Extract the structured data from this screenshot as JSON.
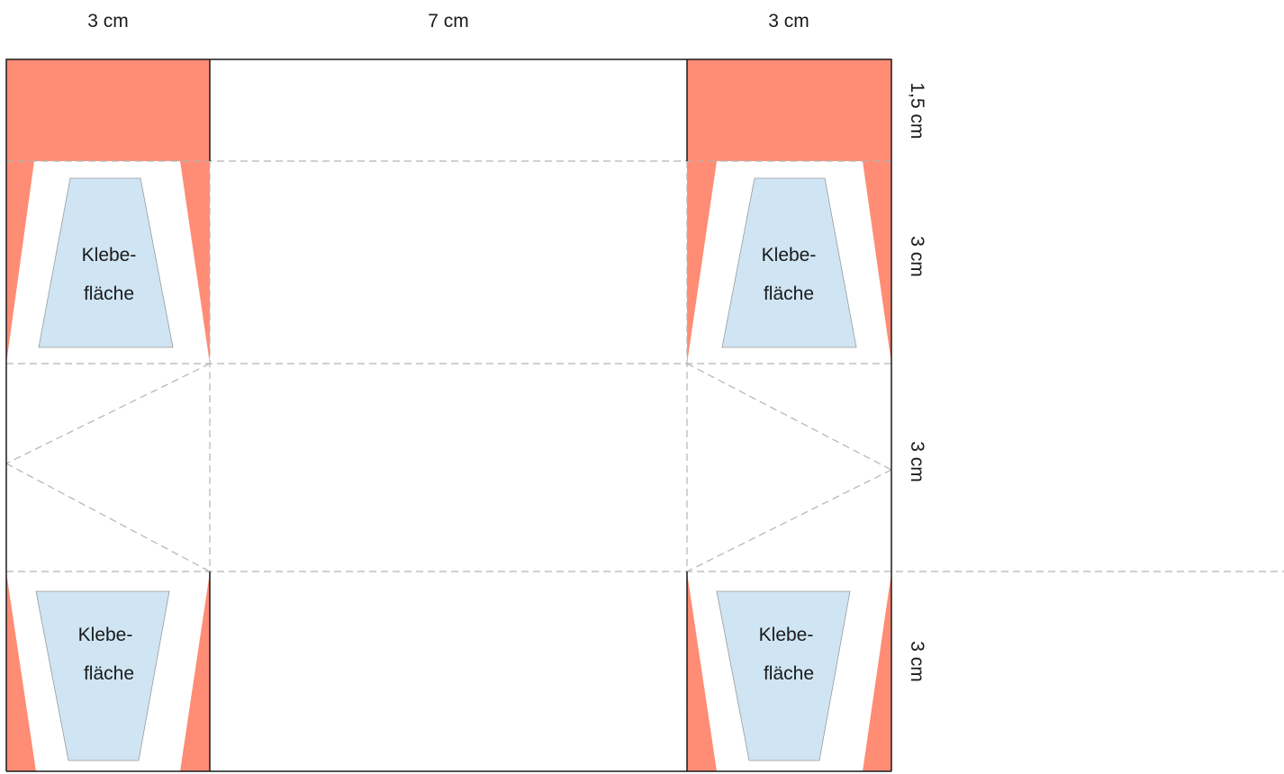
{
  "diagram": {
    "colors": {
      "flap": "#ff8c74",
      "glue": "#cfe5f3",
      "outline": "#1a1a1a",
      "fold_line": "#b3b3b3"
    },
    "column_widths": {
      "left": "3 cm",
      "middle": "7 cm",
      "right": "3 cm"
    },
    "row_heights": {
      "top_flap": "1,5 cm",
      "row1": "3 cm",
      "row2": "3 cm",
      "row3": "3 cm"
    },
    "glue_areas": [
      {
        "line1": "Klebe-",
        "line2": "fläche"
      },
      {
        "line1": "Klebe-",
        "line2": "fläche"
      },
      {
        "line1": "Klebe-",
        "line2": "fläche"
      },
      {
        "line1": "Klebe-",
        "line2": "fläche"
      }
    ]
  }
}
